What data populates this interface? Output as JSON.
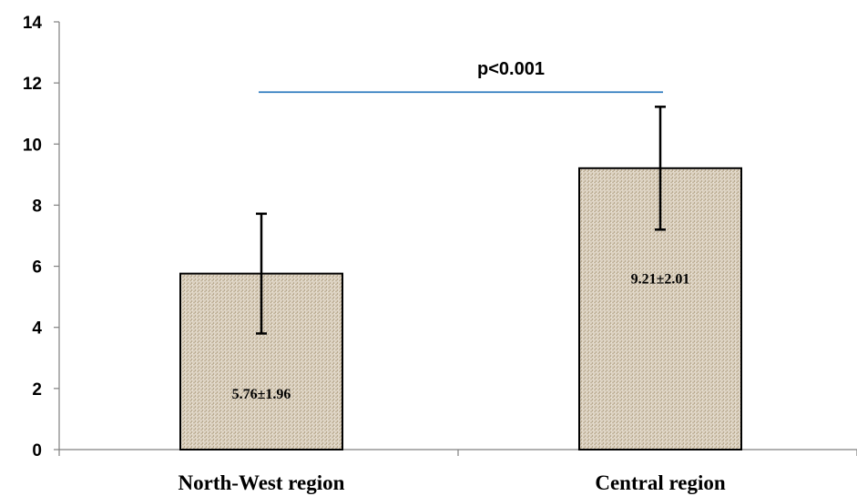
{
  "chart_data": {
    "type": "bar",
    "categories": [
      "North-West region",
      "Central region"
    ],
    "values": [
      5.76,
      9.21
    ],
    "errors": [
      1.96,
      2.01
    ],
    "data_labels": [
      "5.76±1.96",
      "9.21±2.01"
    ],
    "ylim": [
      0,
      14
    ],
    "yticks": [
      0,
      2,
      4,
      6,
      8,
      10,
      12,
      14
    ],
    "ytick_labels": [
      "0",
      "2",
      "4",
      "6",
      "8",
      "10",
      "12",
      "14"
    ],
    "title": "",
    "xlabel": "",
    "ylabel": "",
    "grid": false,
    "significance": {
      "label": "p<0.001",
      "y": 11.7,
      "color": "#2e7bbf"
    },
    "colors": {
      "bar_fill": "#d9cfbf",
      "bar_stroke": "#000000",
      "axis": "#808080"
    }
  }
}
